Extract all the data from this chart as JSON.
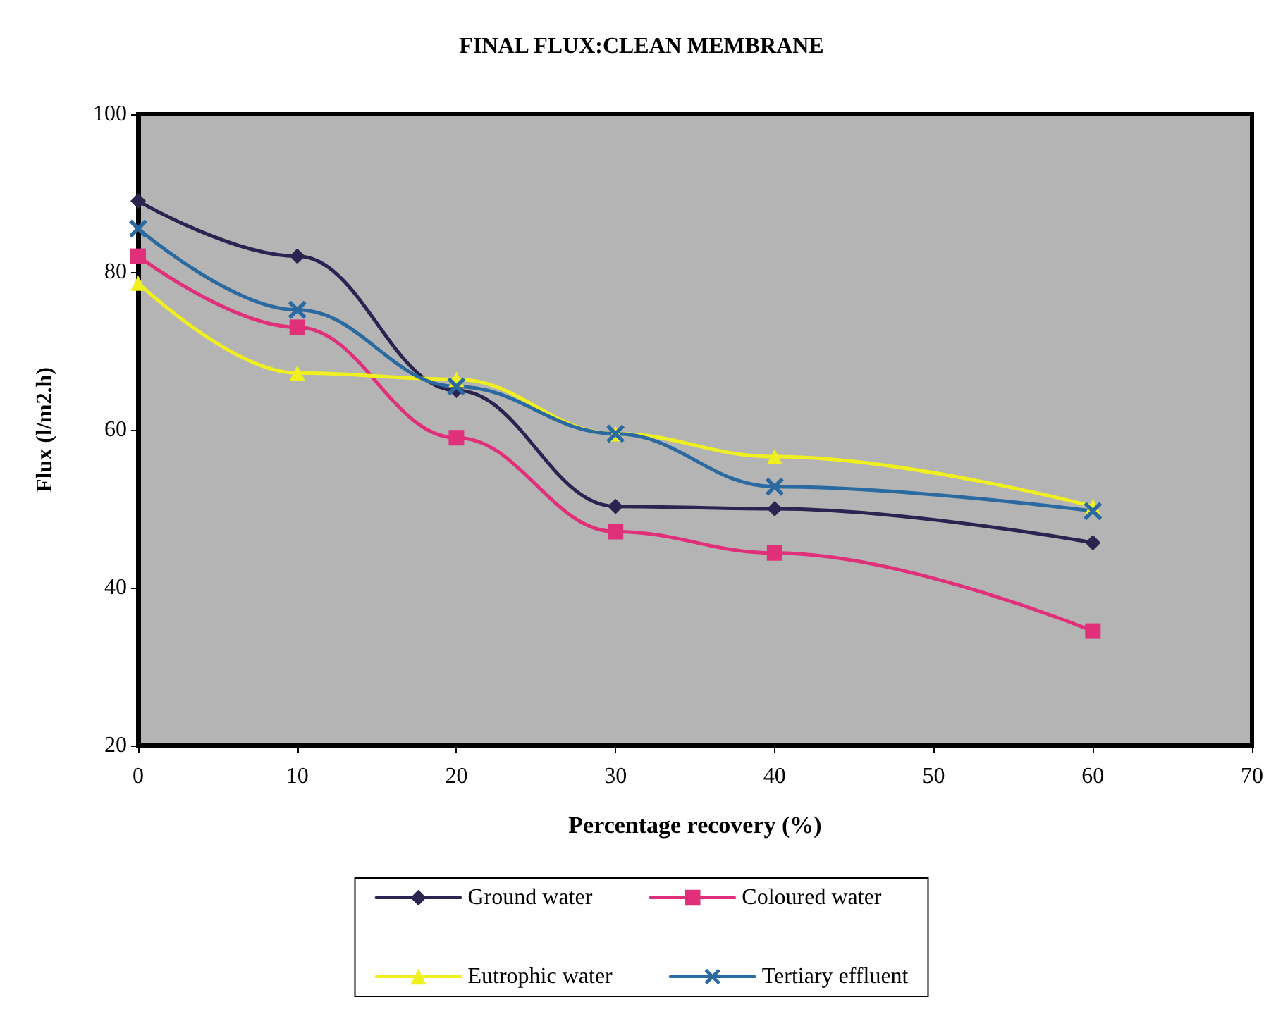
{
  "chart_data": {
    "type": "line",
    "title": "FINAL FLUX:CLEAN MEMBRANE",
    "xlabel": "Percentage recovery (%)",
    "ylabel": "Flux (l/m2.h)",
    "x": [
      0,
      10,
      20,
      30,
      40,
      60
    ],
    "series": [
      {
        "name": "Ground water",
        "color": "#2a2450",
        "marker": "diamond",
        "values": [
          89,
          82,
          65,
          50.3,
          50,
          45.7
        ]
      },
      {
        "name": "Coloured water",
        "color": "#e0307a",
        "marker": "square",
        "values": [
          82,
          73,
          59,
          47.1,
          44.4,
          34.5
        ]
      },
      {
        "name": "Eutrophic water",
        "color": "#f0f020",
        "marker": "triangle",
        "values": [
          78.6,
          67.2,
          66.4,
          59.5,
          56.6,
          50.3
        ]
      },
      {
        "name": "Tertiary effluent",
        "color": "#2a6aa0",
        "marker": "cross",
        "values": [
          85.5,
          75.2,
          65.5,
          59.5,
          52.8,
          49.7
        ]
      }
    ],
    "xlim": [
      0,
      70
    ],
    "xticks": [
      0,
      10,
      20,
      30,
      40,
      50,
      60,
      70
    ],
    "ylim": [
      20,
      100
    ],
    "yticks": [
      20,
      40,
      60,
      80,
      100
    ],
    "grid": false,
    "legend": "bottom",
    "line_style": "solid"
  }
}
